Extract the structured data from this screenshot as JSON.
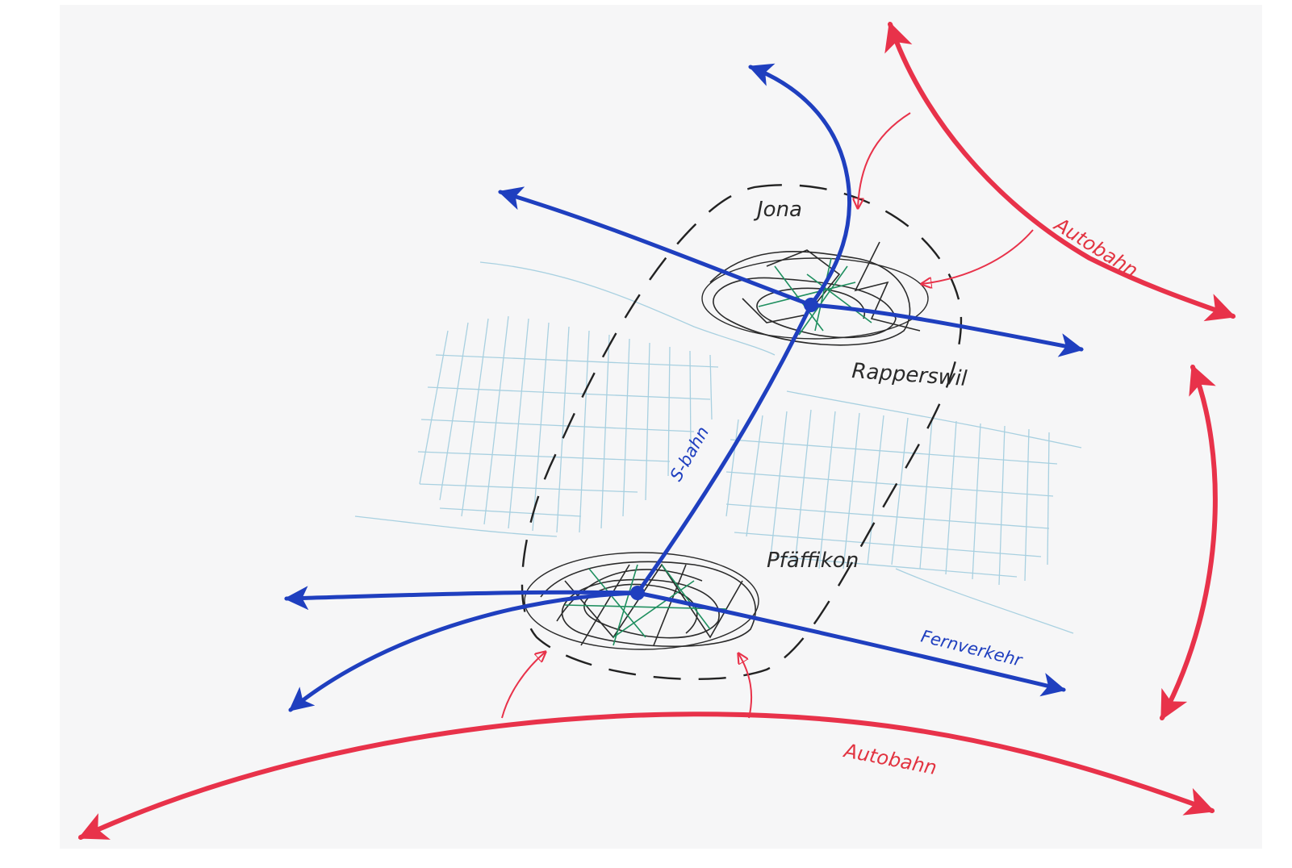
{
  "colors": {
    "paper": "#f6f6f7",
    "rail": "#1f3fbf",
    "road": "#e8324a",
    "water": "#8fc4d9",
    "settlement": "#2a2a2a",
    "green": "#1f8f5f",
    "boundary": "#222222"
  },
  "labels": {
    "jona": "Jona",
    "rapperswil": "Rapperswil",
    "pfaeffikon": "Pfäffikon",
    "sbahn": "S-bahn",
    "fernverkehr": "Fernverkehr",
    "autobahn_top": "Autobahn",
    "autobahn_bottom": "Autobahn"
  }
}
